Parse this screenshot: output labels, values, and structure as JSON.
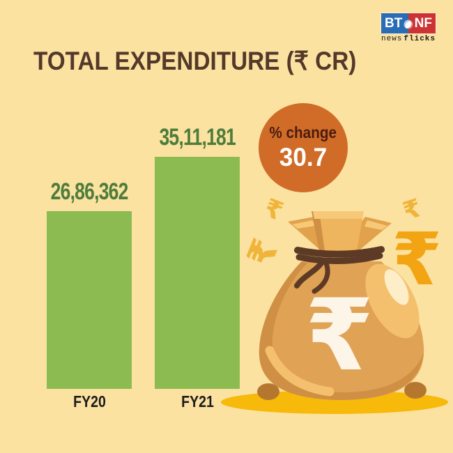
{
  "brand": {
    "logo_left": "BT",
    "logo_right": "NF",
    "tagline_news": "news",
    "tagline_flicks": "flicks"
  },
  "title": "TOTAL EXPENDITURE (₹ CR)",
  "badge": {
    "label": "% change",
    "value": "30.7"
  },
  "chart_data": {
    "type": "bar",
    "title": "TOTAL EXPENDITURE (₹ CR)",
    "unit": "₹ CR",
    "categories": [
      "FY20",
      "FY21"
    ],
    "values": [
      2686362,
      3511181
    ],
    "value_labels": [
      "26,86,362",
      "35,11,181"
    ],
    "percent_change": 30.7,
    "bar_color": "#8cbb52",
    "ylim": [
      0,
      3511181
    ],
    "grid": false,
    "legend": false
  },
  "icons": {
    "rupee": "₹"
  },
  "colors": {
    "bg": "#fbe2a1",
    "title-brown": "#54392a",
    "bar-green": "#8cbb52",
    "value-green": "#4e7c3b",
    "label-black": "#1d1c1a",
    "circle-orange": "#d06c28",
    "pct-maroon": "#4b1c10",
    "logo-blue": "#2a6db5",
    "logo-red": "#cc3333",
    "rupee-gold": "#f0b43a",
    "rupee-deep-gold": "#f2a413",
    "bag-main": "#e0a255",
    "bag-dark": "#cf8f44",
    "bag-highlight": "#f4c06d",
    "rope": "#5d3a25",
    "shadow-gold": "#f7b90a"
  }
}
